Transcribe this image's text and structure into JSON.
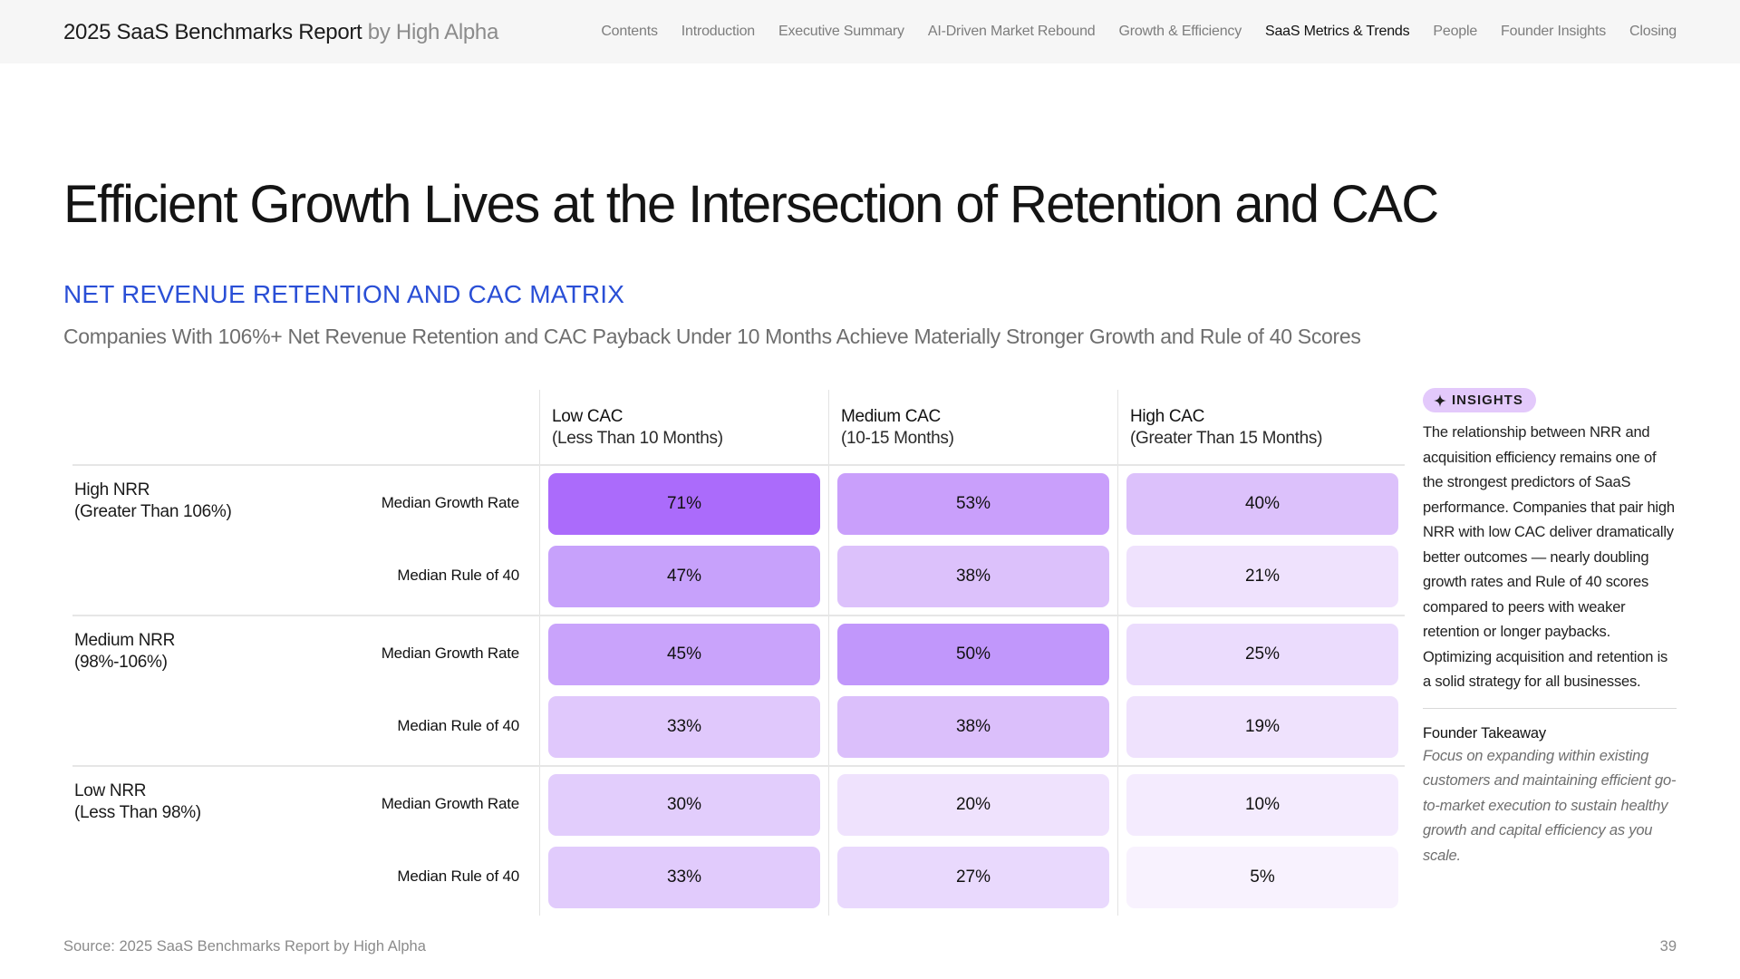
{
  "header": {
    "brand_title": "2025 SaaS Benchmarks Report",
    "brand_by": " by High Alpha",
    "nav": [
      {
        "label": "Contents",
        "active": false
      },
      {
        "label": "Introduction",
        "active": false
      },
      {
        "label": "Executive Summary",
        "active": false
      },
      {
        "label": "AI-Driven Market Rebound",
        "active": false
      },
      {
        "label": "Growth & Efficiency",
        "active": false
      },
      {
        "label": "SaaS Metrics & Trends",
        "active": true
      },
      {
        "label": "People",
        "active": false
      },
      {
        "label": "Founder Insights",
        "active": false
      },
      {
        "label": "Closing",
        "active": false
      }
    ]
  },
  "page": {
    "title": "Efficient Growth Lives at the Intersection of Retention and CAC",
    "section_label": "NET REVENUE RETENTION AND CAC MATRIX",
    "subtitle": "Companies With 106%+ Net Revenue Retention and CAC Payback Under 10 Months Achieve Materially Stronger Growth and Rule of 40 Scores"
  },
  "matrix": {
    "columns": [
      {
        "title": "Low CAC",
        "sub": "(Less Than 10 Months)"
      },
      {
        "title": "Medium CAC",
        "sub": "(10-15 Months)"
      },
      {
        "title": "High CAC",
        "sub": "(Greater Than 15 Months)"
      }
    ],
    "rows": [
      {
        "title": "High NRR",
        "sub": "(Greater Than 106%)",
        "metrics": [
          {
            "label": "Median Growth Rate",
            "values": [
              "71%",
              "53%",
              "40%"
            ],
            "shades": [
              "#ab6bfb",
              "#c99ffb",
              "#dcc1fb"
            ]
          },
          {
            "label": "Median Rule of 40",
            "values": [
              "47%",
              "38%",
              "21%"
            ],
            "shades": [
              "#c7a1fb",
              "#dcc1fb",
              "#efe2fd"
            ]
          }
        ]
      },
      {
        "title": "Medium NRR",
        "sub": "(98%-106%)",
        "metrics": [
          {
            "label": "Median Growth Rate",
            "values": [
              "45%",
              "50%",
              "25%"
            ],
            "shades": [
              "#c9a3fb",
              "#c197fb",
              "#ebdcfd"
            ]
          },
          {
            "label": "Median Rule of 40",
            "values": [
              "33%",
              "38%",
              "19%"
            ],
            "shades": [
              "#e0c8fc",
              "#dbbffb",
              "#efe2fd"
            ]
          }
        ]
      },
      {
        "title": "Low NRR",
        "sub": "(Less Than 98%)",
        "metrics": [
          {
            "label": "Median Growth Rate",
            "values": [
              "30%",
              "20%",
              "10%"
            ],
            "shades": [
              "#e2cdfc",
              "#efe2fd",
              "#f4ebfe"
            ]
          },
          {
            "label": "Median Rule of 40",
            "values": [
              "33%",
              "27%",
              "5%"
            ],
            "shades": [
              "#e1cbfc",
              "#e9d9fd",
              "#f8f2fe"
            ]
          }
        ]
      }
    ]
  },
  "insights": {
    "badge": "INSIGHTS",
    "body": "The relationship between NRR and acquisition efficiency remains one of the strongest predictors of SaaS performance. Companies that pair high NRR with low CAC deliver dramatically better outcomes — nearly doubling growth rates and Rule of 40 scores compared to peers with weaker retention or longer paybacks. Optimizing acquisition and retention is a solid strategy for all businesses.",
    "takeaway_title": "Founder Takeaway",
    "takeaway_body": "Focus on expanding within existing customers and maintaining efficient go-to-market execution to sustain healthy growth and capital efficiency as you scale."
  },
  "footer": {
    "source": "Source: 2025 SaaS Benchmarks Report by High Alpha",
    "page_number": "39"
  }
}
